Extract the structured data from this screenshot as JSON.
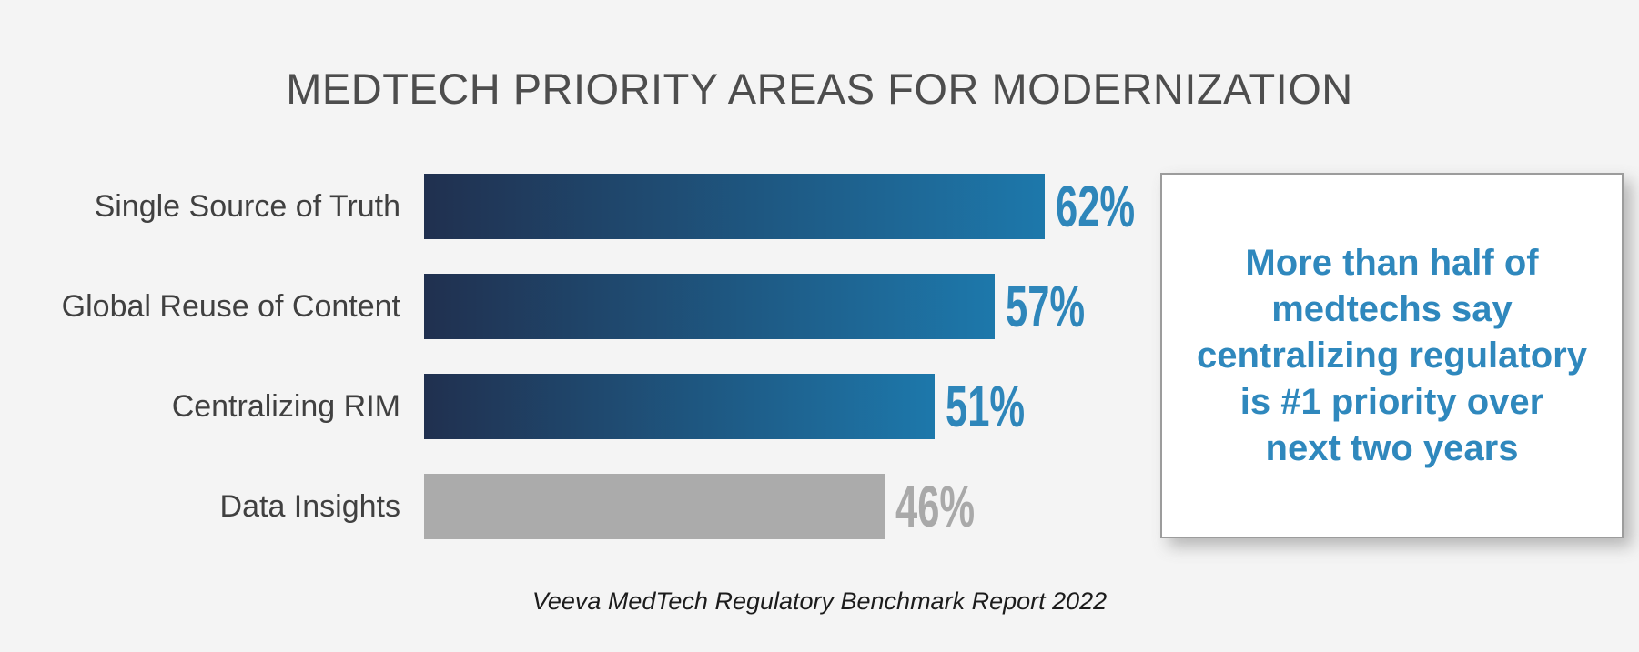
{
  "title": "MEDTECH PRIORITY AREAS FOR MODERNIZATION",
  "chart_data": {
    "type": "bar",
    "orientation": "horizontal",
    "title": "MEDTECH PRIORITY AREAS FOR MODERNIZATION",
    "categories": [
      "Single Source of Truth",
      "Global Reuse of Content",
      "Centralizing RIM",
      "Data Insights"
    ],
    "values": [
      62,
      57,
      51,
      46
    ],
    "unit": "%",
    "data_labels": [
      "62%",
      "57%",
      "51%",
      "46%"
    ],
    "bar_styles": [
      "navy-to-blue-gradient",
      "navy-to-blue-gradient",
      "navy-to-blue-gradient",
      "solid-gray"
    ],
    "xlim": [
      0,
      68
    ],
    "grid": false,
    "legend": false,
    "annotation": "More than half of medtechs say centralizing regulatory is #1 priority over next two years",
    "source": "Veeva MedTech Regulatory Benchmark Report 2022"
  },
  "bars": {
    "items": [
      {
        "label": "Single Source of Truth",
        "value": 62,
        "display": "62%",
        "style": "gradient"
      },
      {
        "label": "Global Reuse of Content",
        "value": 57,
        "display": "57%",
        "style": "gradient"
      },
      {
        "label": "Centralizing RIM",
        "value": 51,
        "display": "51%",
        "style": "gradient"
      },
      {
        "label": "Data Insights",
        "value": 46,
        "display": "46%",
        "style": "gray"
      }
    ]
  },
  "callout": {
    "text": "More than half of\nmedtechs say\ncentralizing regulatory\nis #1 priority over\nnext two years"
  },
  "source": "Veeva MedTech Regulatory Benchmark Report 2022",
  "colors": {
    "background": "#f4f4f4",
    "title_text": "#4d4d4d",
    "label_text": "#404040",
    "bar_gradient_start": "#20304f",
    "bar_gradient_end": "#1d78ab",
    "bar_gray": "#ababab",
    "value_blue": "#2e86ba",
    "value_gray": "#a9a9a9",
    "callout_text": "#2f88bd",
    "callout_border": "#9c9c9c",
    "callout_background": "#ffffff",
    "source_text": "#1c1c1c"
  }
}
